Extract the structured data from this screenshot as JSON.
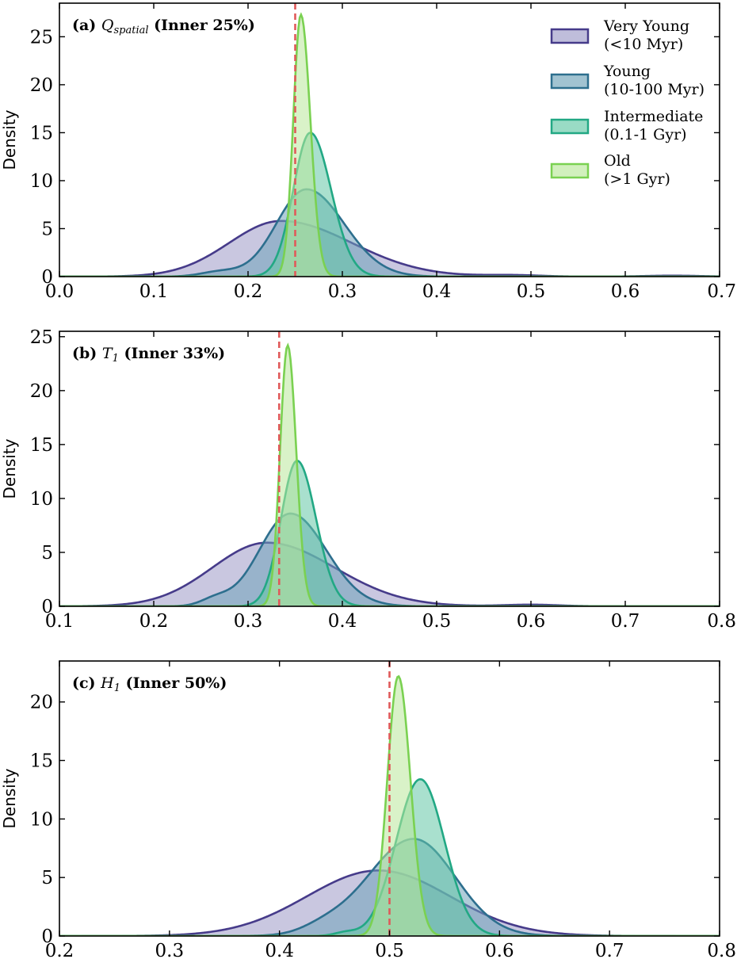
{
  "legend": {
    "placement": "top-right of panel (a)",
    "entries": [
      {
        "line1": "Very Young",
        "line2": "(<10 Myr)"
      },
      {
        "line1": "Young",
        "line2": "(10-100 Myr)"
      },
      {
        "line1": "Intermediate",
        "line2": "(0.1-1 Gyr)"
      },
      {
        "line1": "Old",
        "line2": "(>1 Gyr)"
      }
    ]
  },
  "chart_data": [
    {
      "type": "area",
      "panel": "a",
      "title_prefix": "(a) ",
      "title_symbol": "Q",
      "title_sub": "spatial",
      "title_suffix": " (Inner 25%)",
      "ylabel": "Density",
      "xlim": [
        0,
        0.7
      ],
      "ylim": [
        0,
        28.5
      ],
      "xticks": [
        "0.0",
        "0.1",
        "0.2",
        "0.3",
        "0.4",
        "0.5",
        "0.6",
        "0.7"
      ],
      "yticks": [
        "0",
        "5",
        "10",
        "15",
        "20",
        "25"
      ],
      "vline": 0.25,
      "series": [
        {
          "name": "Very Young",
          "peaks": [
            [
              0.235,
              5.8,
              0.055,
              0.075
            ],
            [
              0.48,
              0.15,
              0.03,
              0.03
            ],
            [
              0.65,
              0.1,
              0.03,
              0.03
            ]
          ]
        },
        {
          "name": "Young",
          "peaks": [
            [
              0.262,
              9.1,
              0.032,
              0.04
            ],
            [
              0.17,
              0.5,
              0.02,
              0.02
            ]
          ]
        },
        {
          "name": "Intermediate",
          "peaks": [
            [
              0.266,
              15.0,
              0.018,
              0.022
            ]
          ]
        },
        {
          "name": "Old",
          "peaks": [
            [
              0.256,
              27.3,
              0.008,
              0.01
            ]
          ]
        }
      ]
    },
    {
      "type": "area",
      "panel": "b",
      "title_prefix": "(b) ",
      "title_symbol": "T",
      "title_sub": "1",
      "title_suffix": " (Inner 33%)",
      "ylabel": "Density",
      "xlim": [
        0.1,
        0.8
      ],
      "ylim": [
        0,
        25.5
      ],
      "xticks": [
        "0.1",
        "0.2",
        "0.3",
        "0.4",
        "0.5",
        "0.6",
        "0.7",
        "0.8"
      ],
      "yticks": [
        "0",
        "5",
        "10",
        "15",
        "20",
        "25"
      ],
      "vline": 0.333,
      "series": [
        {
          "name": "Very Young",
          "peaks": [
            [
              0.32,
              5.9,
              0.058,
              0.072
            ],
            [
              0.6,
              0.15,
              0.03,
              0.03
            ]
          ]
        },
        {
          "name": "Young",
          "peaks": [
            [
              0.345,
              8.6,
              0.033,
              0.038
            ],
            [
              0.265,
              0.6,
              0.015,
              0.015
            ]
          ]
        },
        {
          "name": "Intermediate",
          "peaks": [
            [
              0.352,
              13.5,
              0.017,
              0.02
            ]
          ]
        },
        {
          "name": "Old",
          "peaks": [
            [
              0.342,
              24.2,
              0.008,
              0.009
            ]
          ]
        }
      ]
    },
    {
      "type": "area",
      "panel": "c",
      "title_prefix": "(c) ",
      "title_symbol": "H",
      "title_sub": "1",
      "title_suffix": " (Inner 50%)",
      "ylabel": "Density",
      "xlim": [
        0.2,
        0.8
      ],
      "ylim": [
        0,
        23.5
      ],
      "xticks": [
        "0.2",
        "0.3",
        "0.4",
        "0.5",
        "0.6",
        "0.7",
        "0.8"
      ],
      "yticks": [
        "0",
        "5",
        "10",
        "15",
        "20"
      ],
      "vline": 0.5,
      "series": [
        {
          "name": "Very Young",
          "peaks": [
            [
              0.49,
              5.6,
              0.065,
              0.065
            ]
          ]
        },
        {
          "name": "Young",
          "peaks": [
            [
              0.522,
              8.3,
              0.042,
              0.038
            ],
            [
              0.44,
              0.5,
              0.02,
              0.02
            ]
          ]
        },
        {
          "name": "Intermediate",
          "peaks": [
            [
              0.528,
              13.4,
              0.022,
              0.022
            ],
            [
              0.46,
              0.3,
              0.01,
              0.01
            ]
          ]
        },
        {
          "name": "Old",
          "peaks": [
            [
              0.508,
              22.2,
              0.01,
              0.011
            ]
          ]
        }
      ]
    }
  ],
  "colors": {
    "Very Young": {
      "line": "#463b8a",
      "fill": "#9d99c7"
    },
    "Young": {
      "line": "#2d6f8e",
      "fill": "#6fa3b9"
    },
    "Intermediate": {
      "line": "#22a884",
      "fill": "#63c7a6"
    },
    "Old": {
      "line": "#7ad151",
      "fill": "#b9e89a"
    },
    "vline": "#e05a5a"
  }
}
